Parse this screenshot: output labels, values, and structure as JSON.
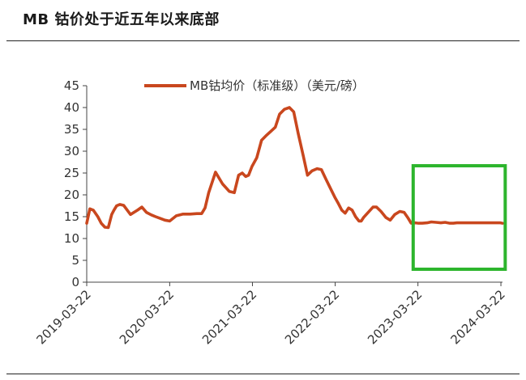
{
  "title": "MB 钴价处于近五年以来底部",
  "chart_data": {
    "type": "line",
    "title": "MB 钴价处于近五年以来底部",
    "xlabel": "",
    "ylabel": "",
    "ylim": [
      0,
      45
    ],
    "yticks": [
      "0",
      "5",
      "10",
      "15",
      "20",
      "25",
      "30",
      "35",
      "40",
      "45"
    ],
    "xtick_labels": [
      "2019-03-22",
      "2020-03-22",
      "2021-03-22",
      "2022-03-22",
      "2023-03-22",
      "2024-03-22"
    ],
    "xlim": [
      "2019-03-22",
      "2024-03-29"
    ],
    "grid": false,
    "legend": "top-center",
    "highlight_box": {
      "x_from": "2023-03-01",
      "x_to": "2024-04-10",
      "color": "#2db52d"
    },
    "series": [
      {
        "name": "MB钴均价（标准级）（美元/磅）",
        "color": "#c9471e",
        "x": [
          "2019-03-22",
          "2019-04-05",
          "2019-04-20",
          "2019-05-10",
          "2019-05-25",
          "2019-06-10",
          "2019-06-25",
          "2019-07-10",
          "2019-07-20",
          "2019-08-01",
          "2019-08-15",
          "2019-09-01",
          "2019-10-01",
          "2019-11-01",
          "2019-11-20",
          "2019-12-10",
          "2020-01-01",
          "2020-01-20",
          "2020-02-10",
          "2020-03-01",
          "2020-03-22",
          "2020-04-20",
          "2020-05-20",
          "2020-06-20",
          "2020-07-20",
          "2020-08-10",
          "2020-08-25",
          "2020-09-10",
          "2020-10-10",
          "2020-11-10",
          "2020-12-10",
          "2021-01-01",
          "2021-01-20",
          "2021-02-05",
          "2021-02-20",
          "2021-03-05",
          "2021-03-20",
          "2021-04-10",
          "2021-05-01",
          "2021-05-20",
          "2021-06-10",
          "2021-07-01",
          "2021-07-20",
          "2021-08-10",
          "2021-09-01",
          "2021-09-20",
          "2021-10-10",
          "2021-11-01",
          "2021-11-20",
          "2021-12-10",
          "2022-01-01",
          "2022-01-20",
          "2022-02-10",
          "2022-03-01",
          "2022-03-20",
          "2022-04-05",
          "2022-04-20",
          "2022-05-05",
          "2022-05-20",
          "2022-06-05",
          "2022-06-20",
          "2022-07-05",
          "2022-07-15",
          "2022-07-25",
          "2022-08-15",
          "2022-09-05",
          "2022-09-20",
          "2022-10-10",
          "2022-11-01",
          "2022-11-20",
          "2022-12-10",
          "2023-01-01",
          "2023-01-20",
          "2023-02-05",
          "2023-02-20",
          "2023-03-10",
          "2023-03-25",
          "2023-04-10",
          "2023-05-01",
          "2023-05-20",
          "2023-06-10",
          "2023-07-01",
          "2023-07-20",
          "2023-08-10",
          "2023-08-25",
          "2023-09-10",
          "2023-09-25",
          "2023-10-10",
          "2023-11-01",
          "2023-11-20",
          "2023-12-10",
          "2024-01-01",
          "2024-01-20",
          "2024-02-10",
          "2024-03-01",
          "2024-03-20",
          "2024-03-29"
        ],
        "y": [
          13.5,
          16.8,
          16.5,
          15.0,
          13.5,
          12.6,
          12.5,
          15.5,
          16.5,
          17.5,
          17.8,
          17.6,
          15.5,
          16.5,
          17.2,
          16.0,
          15.4,
          15.0,
          14.6,
          14.2,
          14.0,
          15.2,
          15.6,
          15.6,
          15.7,
          15.7,
          17.0,
          20.5,
          25.2,
          22.5,
          20.8,
          20.5,
          24.5,
          25.0,
          24.2,
          24.5,
          26.5,
          28.5,
          32.5,
          33.5,
          34.5,
          35.5,
          38.5,
          39.6,
          40.0,
          39.0,
          34.0,
          29.0,
          24.5,
          25.5,
          26.0,
          25.8,
          23.5,
          21.5,
          19.5,
          18.0,
          16.5,
          15.8,
          17.0,
          16.5,
          15.0,
          14.0,
          14.0,
          14.8,
          16.0,
          17.2,
          17.2,
          16.2,
          14.8,
          14.2,
          15.5,
          16.2,
          16.0,
          14.8,
          13.5,
          13.6,
          13.5,
          13.5,
          13.6,
          13.8,
          13.7,
          13.6,
          13.7,
          13.5,
          13.5,
          13.6,
          13.6,
          13.6,
          13.6,
          13.6,
          13.6,
          13.6,
          13.6,
          13.6,
          13.6,
          13.6,
          13.5
        ]
      }
    ]
  }
}
